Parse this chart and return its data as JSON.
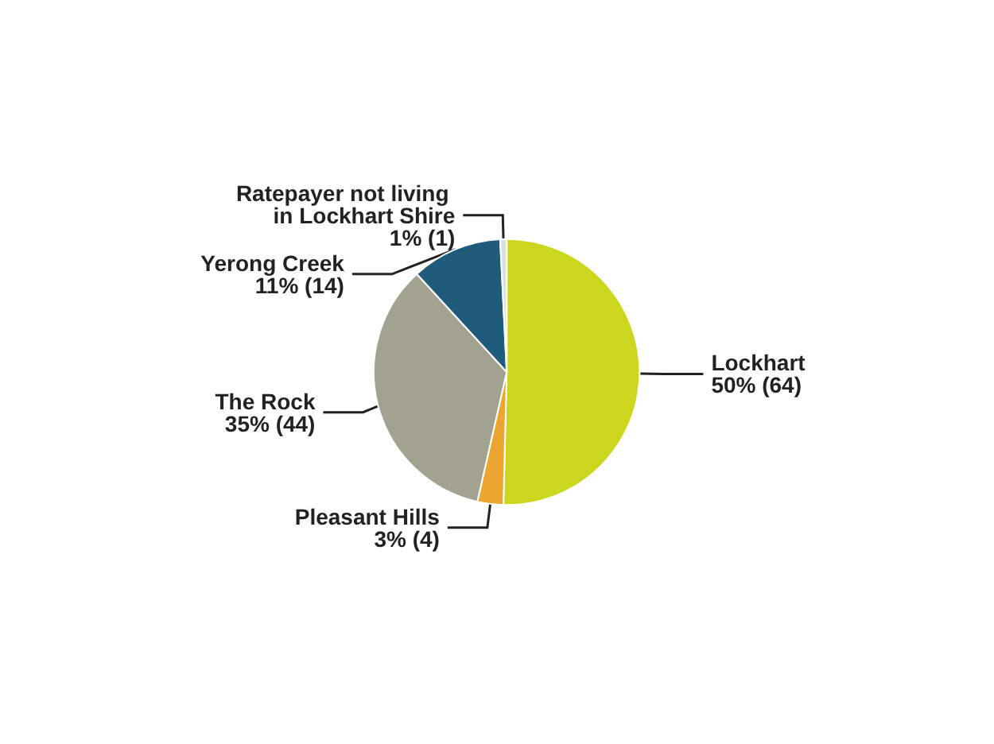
{
  "chart_data": {
    "type": "pie",
    "categories": [
      "Lockhart",
      "Pleasant Hills",
      "The Rock",
      "Yerong Creek",
      "Ratepayer not living in Lockhart Shire"
    ],
    "values": [
      64,
      4,
      44,
      14,
      1
    ],
    "value_labels": [
      "50% (64)",
      "3% (4)",
      "35% (44)",
      "11% (14)",
      "1% (1)"
    ],
    "colors": [
      "#cdd61e",
      "#eda532",
      "#a3a290",
      "#1f5c7c",
      "#d8e0e4"
    ],
    "legend": false
  }
}
